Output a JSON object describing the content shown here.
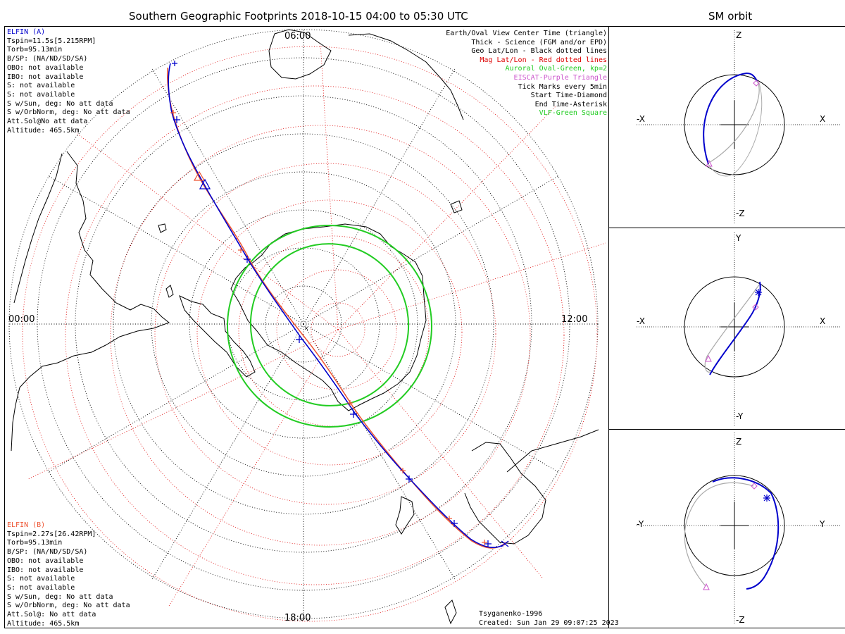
{
  "main": {
    "title": "Southern Geographic Footprints 2018-10-15 04:00 to 05:30 UTC",
    "time_labels": {
      "top": "06:00",
      "left": "00:00",
      "right": "12:00",
      "bottom": "18:00"
    },
    "model": "Tsyganenko-1996",
    "created": "Created: Sun Jan 29 09:07:25 2023"
  },
  "elfin_a": {
    "name": "ELFIN (A)",
    "lines": [
      "Tspin=11.5s[5.215RPM]",
      "Torb=95.13min",
      "B/SP: (NA/ND/SD/SA)",
      "OBO: not available",
      "IBO: not available",
      "S: not available",
      "S: not available",
      "S w/Sun, deg: No att data",
      "S w/OrbNorm, deg: No att data",
      "Att.Sol@No att data",
      "Altitude: 465.5km"
    ],
    "color": "#0000cc"
  },
  "elfin_b": {
    "name": "ELFIN (B)",
    "lines": [
      "Tspin=2.27s[26.42RPM]",
      "Torb=95.13min",
      "B/SP: (NA/ND/SD/SA)",
      "OBO: not available",
      "IBO: not available",
      "S: not available",
      "S: not available",
      "S w/Sun, deg: No att data",
      "S w/OrbNorm, deg: No att data",
      "Att.Sol@: No att data",
      "Altitude: 465.5km"
    ],
    "color": "#ee5533"
  },
  "legend": [
    {
      "text": "Earth/Oval View Center Time (triangle)",
      "color": "#000000"
    },
    {
      "text": "Thick - Science (FGM and/or EPD)",
      "color": "#000000"
    },
    {
      "text": "Geo Lat/Lon - Black dotted lines",
      "color": "#000000"
    },
    {
      "text": "Mag Lat/Lon - Red dotted lines",
      "color": "#dd0000"
    },
    {
      "text": "Auroral Oval-Green, kp=2",
      "color": "#22cc22"
    },
    {
      "text": "EISCAT-Purple Triangle",
      "color": "#cc55cc"
    },
    {
      "text": "Tick Marks every 5min",
      "color": "#000000"
    },
    {
      "text": "Start Time-Diamond",
      "color": "#000000"
    },
    {
      "text": "End Time-Asterisk",
      "color": "#000000"
    },
    {
      "text": "VLF-Green Square",
      "color": "#22cc22"
    }
  ],
  "orbit": {
    "title": "SM orbit",
    "panels": [
      {
        "top": "Z",
        "bottom": "-Z",
        "left": "-X",
        "right": "X"
      },
      {
        "top": "Y",
        "bottom": "-Y",
        "left": "-X",
        "right": "X"
      },
      {
        "top": "Z",
        "bottom": "-Z",
        "left": "-Y",
        "right": "Y"
      }
    ]
  },
  "colors": {
    "geo_grid": "#000000",
    "mag_grid": "#dd0000",
    "oval": "#22cc22",
    "track_a": "#0000cc",
    "track_b": "#ee5533",
    "orbit_other": "#aaaaaa",
    "marker": "#cc55cc"
  }
}
